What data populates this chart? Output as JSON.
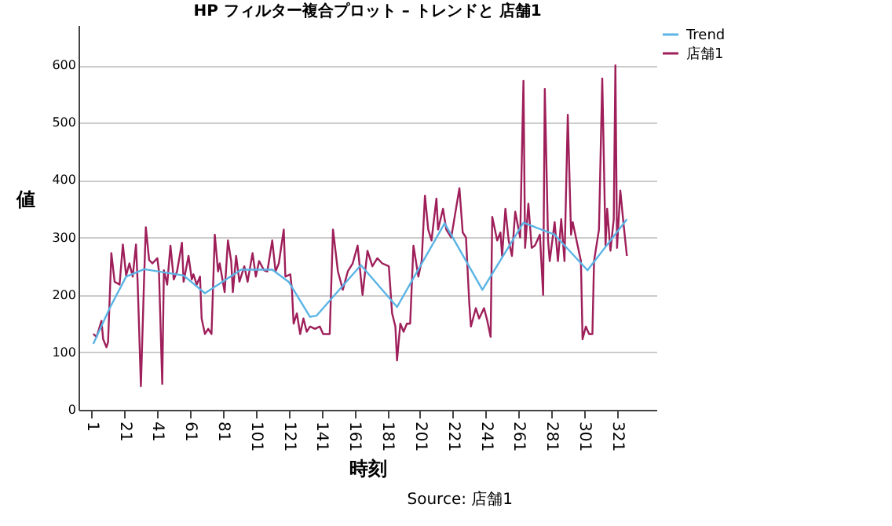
{
  "chart_data": {
    "type": "line",
    "title": "HP フィルター複合プロット – トレンドと 店舗1",
    "xlabel": "時刻",
    "ylabel": "値",
    "annotations": [
      "Source: 店舗1"
    ],
    "xlim": [
      -7,
      345
    ],
    "xticks": [
      1,
      21,
      41,
      61,
      81,
      101,
      121,
      141,
      161,
      181,
      201,
      221,
      241,
      261,
      281,
      301,
      321
    ],
    "ylim": [
      0,
      670
    ],
    "yticks": [
      0,
      100,
      200,
      300,
      400,
      500,
      600
    ],
    "grid": "y",
    "legend": "top right",
    "marker": "none",
    "line_style": "solid",
    "series": [
      {
        "name": "Trend",
        "color": "#5ab4e5",
        "x": [
          2,
          12,
          22,
          33,
          57,
          70,
          92,
          111,
          121,
          134,
          138,
          165,
          187,
          216,
          239,
          264,
          283,
          303,
          327
        ],
        "values": [
          115,
          177,
          232,
          245,
          234,
          203,
          244,
          244,
          223,
          162,
          164,
          252,
          179,
          325,
          209,
          326,
          305,
          243,
          332
        ]
      },
      {
        "name": "店舗1",
        "color": "#9e1f5a",
        "x": [
          2,
          4,
          7,
          8,
          10,
          11,
          13,
          15,
          18,
          20,
          22,
          24,
          26,
          28,
          29,
          31,
          33,
          34,
          36,
          38,
          41,
          42,
          44,
          45,
          47,
          49,
          51,
          53,
          56,
          57,
          60,
          62,
          63,
          65,
          67,
          68,
          70,
          72,
          74,
          76,
          78,
          79,
          82,
          84,
          86,
          87,
          89,
          91,
          94,
          96,
          99,
          101,
          103,
          106,
          108,
          111,
          113,
          115,
          118,
          119,
          122,
          123,
          124,
          126,
          128,
          130,
          132,
          134,
          137,
          140,
          142,
          146,
          148,
          151,
          154,
          157,
          160,
          163,
          166,
          169,
          172,
          175,
          178,
          182,
          184,
          186,
          187,
          189,
          191,
          193,
          195,
          197,
          200,
          202,
          204,
          206,
          208,
          211,
          212,
          215,
          217,
          220,
          225,
          227,
          229,
          231,
          232,
          235,
          237,
          240,
          242,
          244,
          245,
          248,
          250,
          251,
          253,
          255,
          257,
          259,
          262,
          264,
          265,
          267,
          269,
          271,
          274,
          276,
          277,
          279,
          280,
          283,
          285,
          287,
          289,
          291,
          293,
          294,
          297,
          299,
          300,
          302,
          304,
          306,
          307,
          310,
          312,
          314,
          315,
          317,
          319,
          320,
          321,
          323,
          325,
          327
        ],
        "values": [
          132,
          127,
          155,
          123,
          109,
          118,
          273,
          223,
          218,
          288,
          234,
          255,
          232,
          288,
          223,
          41,
          234,
          318,
          261,
          255,
          264,
          241,
          45,
          243,
          218,
          286,
          227,
          241,
          291,
          223,
          268,
          227,
          236,
          218,
          232,
          159,
          132,
          141,
          132,
          305,
          241,
          255,
          205,
          295,
          259,
          205,
          268,
          223,
          250,
          223,
          273,
          232,
          259,
          243,
          241,
          295,
          241,
          255,
          314,
          232,
          236,
          209,
          150,
          168,
          132,
          159,
          136,
          145,
          141,
          145,
          132,
          132,
          314,
          241,
          209,
          241,
          255,
          286,
          200,
          277,
          250,
          264,
          255,
          250,
          168,
          145,
          86,
          150,
          136,
          150,
          150,
          286,
          232,
          259,
          373,
          314,
          295,
          368,
          314,
          350,
          314,
          300,
          386,
          309,
          300,
          186,
          145,
          177,
          159,
          177,
          155,
          127,
          336,
          295,
          309,
          268,
          350,
          295,
          268,
          345,
          300,
          573,
          282,
          359,
          282,
          286,
          305,
          200,
          559,
          295,
          259,
          327,
          259,
          332,
          259,
          514,
          305,
          327,
          286,
          259,
          123,
          145,
          132,
          132,
          259,
          314,
          577,
          286,
          350,
          277,
          332,
          600,
          282,
          382,
          323,
          268
        ]
      }
    ]
  }
}
